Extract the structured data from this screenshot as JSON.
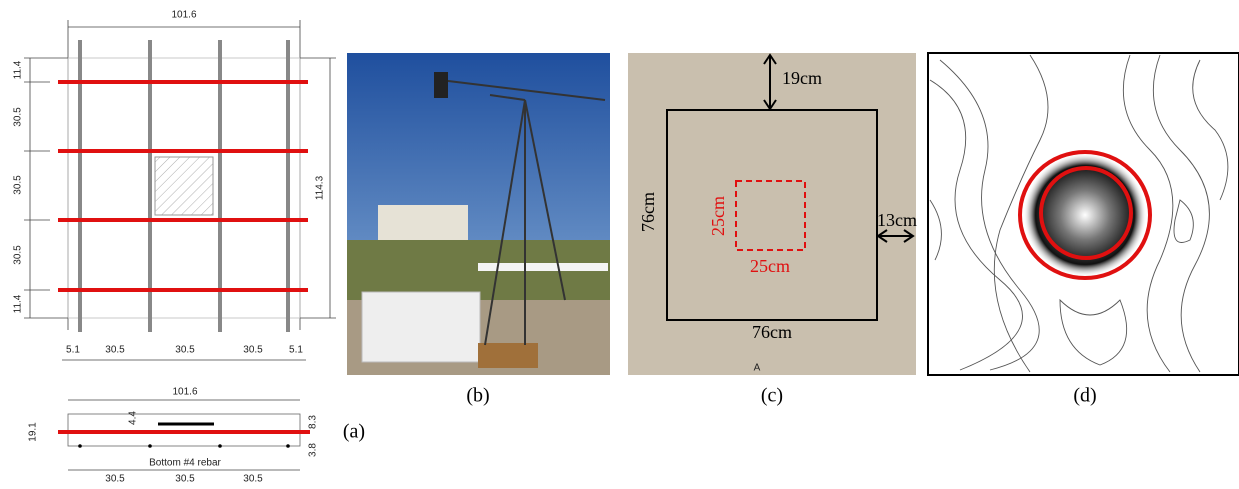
{
  "panel_a": {
    "plan": {
      "width": "101.6",
      "height": "114.3",
      "left_dims": [
        "11.4",
        "30.5",
        "30.5",
        "30.5",
        "11.4"
      ],
      "bottom_dims": [
        "5.1",
        "30.5",
        "30.5",
        "30.5",
        "5.1"
      ]
    },
    "section": {
      "width": "101.6",
      "depth": "19.1",
      "top_cover": "4.4",
      "right_top": "8.3",
      "right_bottom": "3.8",
      "rebar_note": "Bottom #4 rebar",
      "bottom_dims": [
        "30.5",
        "30.5",
        "30.5"
      ]
    },
    "caption": "(a)"
  },
  "panel_b": {
    "caption": "(b)"
  },
  "panel_c": {
    "top_offset": "19cm",
    "right_offset": "13cm",
    "side": "76cm",
    "bottom": "76cm",
    "inner_side": "25cm",
    "inner_bottom": "25cm",
    "marker": "A",
    "caption": "(c)"
  },
  "panel_d": {
    "caption": "(d)"
  }
}
